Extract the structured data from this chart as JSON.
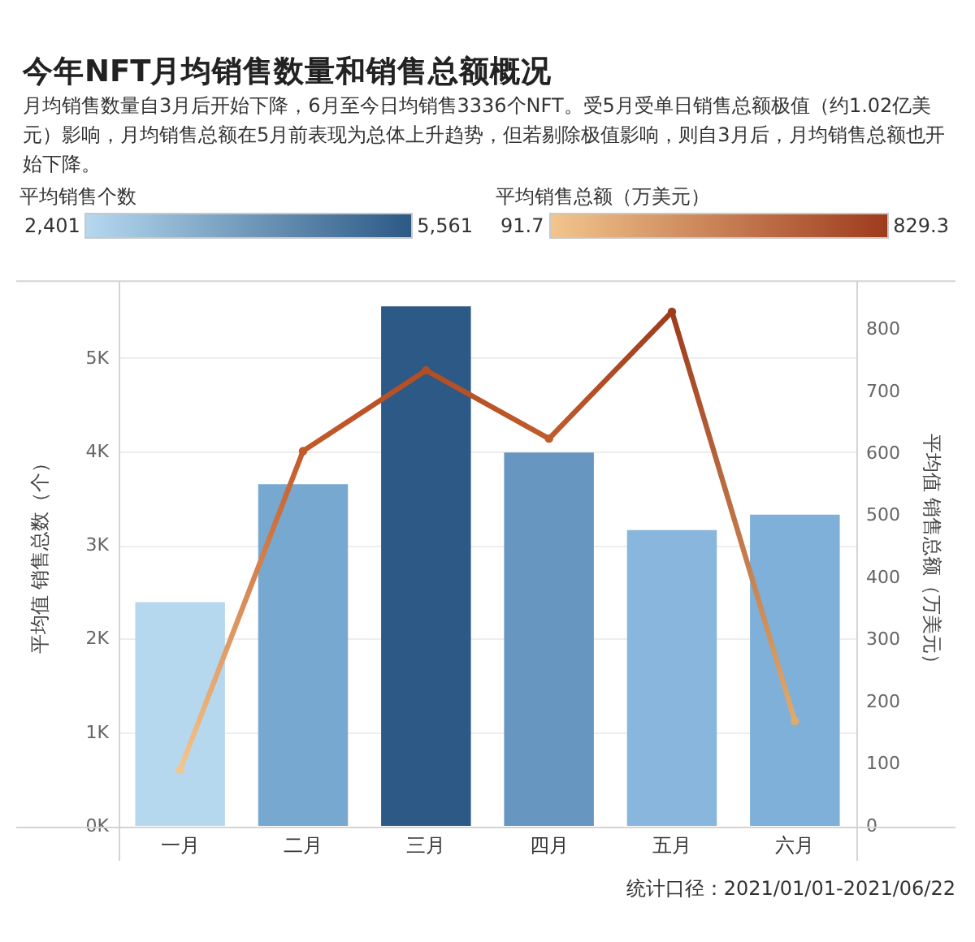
{
  "chart_data": {
    "type": "bar",
    "title": "今年NFT月均销售数量和销售总额概况",
    "subtitle": "月均销售数量自3月后开始下降，6月至今日均销售3336个NFT。受5月受单日销售总额极值（约1.02亿美元）影响，月均销售总额在5月前表现为总体上升趋势，但若剔除极值影响，则自3月后，月均销售总额也开始下降。",
    "ylabel": "平均值 销售总数（个）",
    "y2label": "平均值 销售总额（万美元）",
    "annotations": [
      "平均销售个数",
      "2,401",
      "5,561",
      "平均销售总额（万美元）",
      "91.7",
      "829.3",
      "统计口径：2021/01/01-2021/06/22"
    ],
    "categories": [
      "一月",
      "二月",
      "三月",
      "四月",
      "五月",
      "六月"
    ],
    "series": [
      {
        "colors": [
          "#b5d8ef",
          "#76a8d0",
          "#2c5985",
          "#6796c1",
          "#88b6dc",
          "#7eb0d9"
        ],
        "values": [
          2401,
          3660,
          5561,
          4000,
          3170,
          3336
        ]
      },
      {
        "type": "line",
        "axis": "y2",
        "colors": [
          "#f2c58d",
          "#c35a2b",
          "#b44d23",
          "#c05c2c",
          "#9e3b1d",
          "#deaa6e"
        ],
        "values": [
          91.7,
          605,
          735,
          625,
          829.3,
          170
        ]
      }
    ],
    "ylim": [
      0,
      5840
    ],
    "yticks": [
      {
        "value": 0,
        "label": "0K"
      },
      {
        "value": 1000,
        "label": "1K"
      },
      {
        "value": 2000,
        "label": "2K"
      },
      {
        "value": 3000,
        "label": "3K"
      },
      {
        "value": 4000,
        "label": "4K"
      },
      {
        "value": 5000,
        "label": "5K"
      }
    ],
    "y2lim": [
      0,
      880
    ],
    "y2ticks": [
      0,
      100,
      200,
      300,
      400,
      500,
      600,
      700,
      800
    ],
    "grid": "y",
    "marker": "circle"
  }
}
